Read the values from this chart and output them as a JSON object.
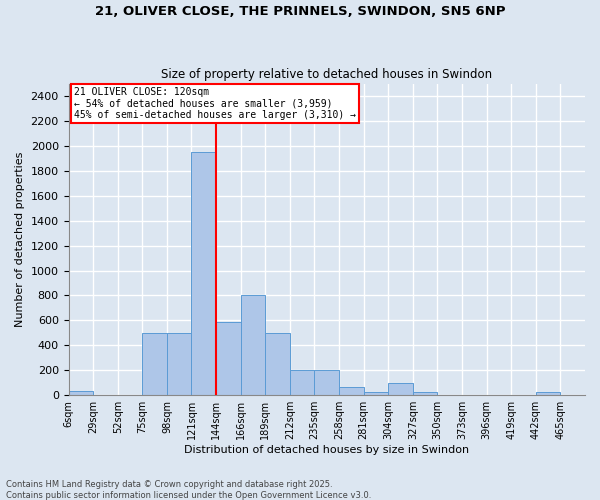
{
  "title1": "21, OLIVER CLOSE, THE PRINNELS, SWINDON, SN5 6NP",
  "title2": "Size of property relative to detached houses in Swindon",
  "xlabel": "Distribution of detached houses by size in Swindon",
  "ylabel": "Number of detached properties",
  "footer1": "Contains HM Land Registry data © Crown copyright and database right 2025.",
  "footer2": "Contains public sector information licensed under the Open Government Licence v3.0.",
  "bin_labels": [
    "6sqm",
    "29sqm",
    "52sqm",
    "75sqm",
    "98sqm",
    "121sqm",
    "144sqm",
    "166sqm",
    "189sqm",
    "212sqm",
    "235sqm",
    "258sqm",
    "281sqm",
    "304sqm",
    "327sqm",
    "350sqm",
    "373sqm",
    "396sqm",
    "419sqm",
    "442sqm",
    "465sqm"
  ],
  "bar_heights": [
    30,
    0,
    0,
    500,
    500,
    1950,
    590,
    800,
    500,
    200,
    200,
    65,
    25,
    100,
    25,
    0,
    0,
    0,
    0,
    25,
    0
  ],
  "bar_color": "#aec6e8",
  "bar_edge_color": "#5b9bd5",
  "bg_color": "#dce6f1",
  "grid_color": "#ffffff",
  "red_line_index": 5,
  "annotation_text": "21 OLIVER CLOSE: 120sqm\n← 54% of detached houses are smaller (3,959)\n45% of semi-detached houses are larger (3,310) →",
  "ylim": [
    0,
    2500
  ],
  "yticks": [
    0,
    200,
    400,
    600,
    800,
    1000,
    1200,
    1400,
    1600,
    1800,
    2000,
    2200,
    2400
  ]
}
